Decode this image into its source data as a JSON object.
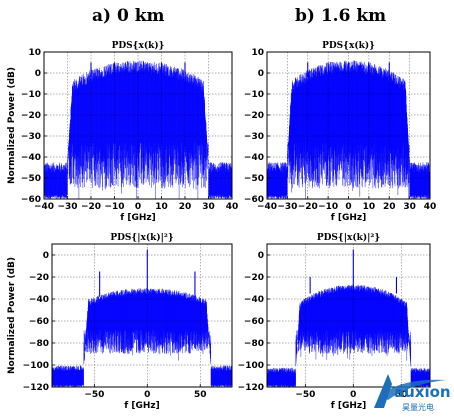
{
  "headers": {
    "left": "a) 0 km",
    "right": "b) 1.6 km"
  },
  "watermark": {
    "brand": "auxion",
    "sub": "昊量光电",
    "color": "#1c6fb8"
  },
  "chart_data": [
    {
      "type": "area",
      "title": "PDS{x(k)}",
      "xlabel": "f [GHz]",
      "ylabel": "Normalized Power (dB)",
      "xlim": [
        -40,
        40
      ],
      "ylim": [
        -60,
        10
      ],
      "xticks": [
        -40,
        -30,
        -20,
        -10,
        0,
        10,
        20,
        30,
        40
      ],
      "yticks": [
        10,
        0,
        -10,
        -20,
        -30,
        -40,
        -50,
        -60
      ],
      "grid": true,
      "color": "#0000ff",
      "spectrum": {
        "floor": -46,
        "band_edge": 30,
        "passband_top_center": 3,
        "passband_top_edge": -8,
        "notch_depth": -55,
        "spur_freqs": [
          -20,
          -10,
          0,
          10,
          20
        ],
        "spur_level": 5
      }
    },
    {
      "type": "area",
      "title": "PDS{x(k)}",
      "xlabel": "f [GHz]",
      "ylabel": "",
      "xlim": [
        -40,
        40
      ],
      "ylim": [
        -60,
        10
      ],
      "xticks": [
        -40,
        -30,
        -20,
        -10,
        0,
        10,
        20,
        30,
        40
      ],
      "yticks": [
        10,
        0,
        -10,
        -20,
        -30,
        -40,
        -50,
        -60
      ],
      "grid": true,
      "color": "#0000ff",
      "spectrum": {
        "floor": -46,
        "band_edge": 30,
        "passband_top_center": 3,
        "passband_top_edge": -8,
        "notch_depth": -55,
        "spur_freqs": [
          -20,
          -10,
          0,
          10,
          20
        ],
        "spur_level": 5
      }
    },
    {
      "type": "area",
      "title": "PDS{|x(k)|²}",
      "xlabel": "f [GHz]",
      "ylabel": "Normalized Power (dB)",
      "xlim": [
        -90,
        80
      ],
      "ylim": [
        -120,
        10
      ],
      "xticks": [
        -50,
        0,
        50
      ],
      "yticks": [
        0,
        -20,
        -40,
        -60,
        -80,
        -100,
        -120
      ],
      "grid": true,
      "color": "#0000ff",
      "spectrum": {
        "floor": -104,
        "band_edge": 60,
        "passband_top_center": -33,
        "passband_top_edge": -45,
        "notch_depth": -90,
        "spur_freqs": [
          -45,
          0,
          45
        ],
        "spur_levels": [
          -15,
          5,
          -15
        ]
      }
    },
    {
      "type": "area",
      "title": "PDS{|x(k)|²}",
      "xlabel": "f [GHz]",
      "ylabel": "",
      "xlim": [
        -90,
        80
      ],
      "ylim": [
        -120,
        10
      ],
      "xticks": [
        -50,
        0,
        50
      ],
      "yticks": [
        0,
        -20,
        -40,
        -60,
        -80,
        -100,
        -120
      ],
      "grid": true,
      "color": "#0000ff",
      "spectrum": {
        "floor": -106,
        "band_edge": 60,
        "passband_top_center": -30,
        "passband_top_edge": -48,
        "notch_depth": -90,
        "spur_freqs": [
          -45,
          0,
          45
        ],
        "spur_levels": [
          -20,
          5,
          -20
        ]
      }
    }
  ]
}
